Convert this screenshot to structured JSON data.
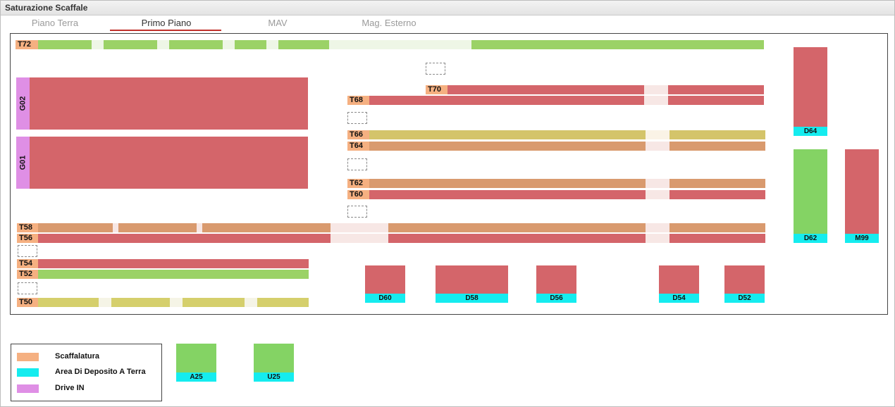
{
  "window": {
    "title": "Saturazione Scaffale"
  },
  "tabs": [
    {
      "label": "Piano Terra"
    },
    {
      "label": "Primo Piano"
    },
    {
      "label": "MAV"
    },
    {
      "label": "Mag. Esterno"
    }
  ],
  "active_tab": "Primo Piano",
  "shelves": {
    "T72": "T72",
    "T70": "T70",
    "T68": "T68",
    "T66": "T66",
    "T64": "T64",
    "T62": "T62",
    "T60": "T60",
    "T58": "T58",
    "T56": "T56",
    "T54": "T54",
    "T52": "T52",
    "T50": "T50"
  },
  "drive_in": {
    "G02": "G02",
    "G01": "G01"
  },
  "deposits": {
    "D64": "D64",
    "D62": "D62",
    "M99": "M99",
    "D60": "D60",
    "D58": "D58",
    "D56": "D56",
    "D54": "D54",
    "D52": "D52",
    "A25": "A25",
    "U25": "U25"
  },
  "legend": [
    {
      "label": "Scaffalatura",
      "color": "#f5b081"
    },
    {
      "label": "Area Di Deposito A Terra",
      "color": "#15ecef"
    },
    {
      "label": "Drive IN",
      "color": "#df8fe5"
    }
  ],
  "status_colors": {
    "green": "#9bd266",
    "red": "#d4656a",
    "orange": "#d99a6e",
    "yellow": "#d4c46a"
  }
}
